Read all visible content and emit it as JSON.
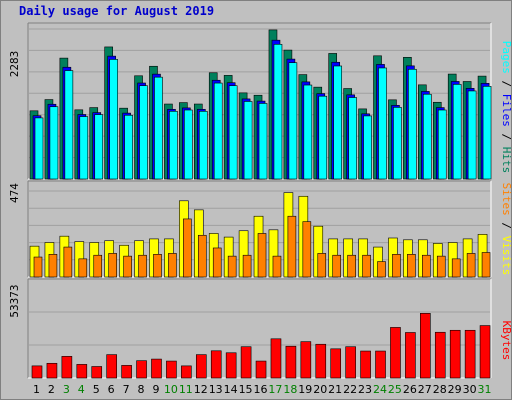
{
  "title": "Daily usage for August 2019",
  "colors": {
    "background": "#c0c0c0",
    "panel": "#c0c0c0",
    "grid": "#a0a0a0",
    "hits": "#00805c",
    "files": "#0000ff",
    "pages": "#00ffff",
    "visits": "#ffff00",
    "sites": "#ff8000",
    "kbytes": "#ff0000",
    "weekend_day": "#008000",
    "weekday": "#000000",
    "title": "#0000cc"
  },
  "chart_data": [
    {
      "type": "bar",
      "title": "Daily usage for August 2019",
      "categories": [
        "1",
        "2",
        "3",
        "4",
        "5",
        "6",
        "7",
        "8",
        "9",
        "10",
        "11",
        "12",
        "13",
        "14",
        "15",
        "16",
        "17",
        "18",
        "19",
        "20",
        "21",
        "22",
        "23",
        "24",
        "25",
        "26",
        "27",
        "28",
        "29",
        "30",
        "31"
      ],
      "weekend_days": [
        "3",
        "4",
        "10",
        "11",
        "17",
        "18",
        "24",
        "25",
        "31"
      ],
      "y_max_label": "2283",
      "ylim": [
        0,
        2283
      ],
      "legend": [
        "Pages",
        "Files",
        "Hits"
      ],
      "series": [
        {
          "name": "Hits",
          "values": [
            1038,
            1209,
            1840,
            1053,
            1087,
            2010,
            1078,
            1571,
            1716,
            1141,
            1163,
            1141,
            1617,
            1577,
            1311,
            1275,
            2269,
            1962,
            1589,
            1398,
            1911,
            1377,
            1067,
            1875,
            1205,
            1852,
            1433,
            1168,
            1597,
            1484,
            1566
          ]
        },
        {
          "name": "Files",
          "values": [
            963,
            1138,
            1701,
            982,
            1011,
            1870,
            1003,
            1461,
            1596,
            1061,
            1082,
            1061,
            1503,
            1466,
            1219,
            1186,
            2113,
            1825,
            1478,
            1300,
            1777,
            1281,
            992,
            1744,
            1121,
            1722,
            1333,
            1087,
            1485,
            1380,
            1456
          ]
        },
        {
          "name": "Pages",
          "values": [
            930,
            1100,
            1650,
            950,
            980,
            1820,
            970,
            1420,
            1550,
            1030,
            1050,
            1030,
            1460,
            1420,
            1180,
            1150,
            2050,
            1770,
            1430,
            1260,
            1720,
            1240,
            960,
            1690,
            1090,
            1670,
            1290,
            1050,
            1440,
            1340,
            1410
          ]
        }
      ]
    },
    {
      "type": "bar",
      "y_max_label": "474",
      "ylim": [
        0,
        474
      ],
      "legend": [
        "Sites",
        "Visits"
      ],
      "series": [
        {
          "name": "Visits",
          "values": [
            170,
            190,
            225,
            195,
            190,
            200,
            175,
            200,
            210,
            210,
            420,
            370,
            240,
            220,
            255,
            335,
            260,
            465,
            445,
            280,
            210,
            210,
            210,
            165,
            215,
            205,
            205,
            185,
            190,
            210,
            235
          ]
        },
        {
          "name": "Sites",
          "values": [
            110,
            125,
            165,
            100,
            120,
            130,
            115,
            120,
            125,
            130,
            320,
            230,
            160,
            115,
            120,
            240,
            115,
            335,
            305,
            130,
            120,
            120,
            120,
            85,
            125,
            125,
            120,
            115,
            100,
            130,
            135
          ]
        }
      ]
    },
    {
      "type": "bar",
      "y_max_label": "53373",
      "ylim": [
        0,
        53373
      ],
      "legend": [
        "KBytes"
      ],
      "series": [
        {
          "name": "KBytes",
          "values": [
            9800,
            11900,
            17500,
            11000,
            9300,
            18900,
            10200,
            14000,
            15300,
            13700,
            9800,
            18900,
            22000,
            20400,
            25300,
            13700,
            31700,
            25700,
            29400,
            27300,
            23600,
            25300,
            21800,
            21800,
            40900,
            36800,
            52300,
            37000,
            38600,
            38600,
            42400
          ]
        }
      ]
    }
  ]
}
